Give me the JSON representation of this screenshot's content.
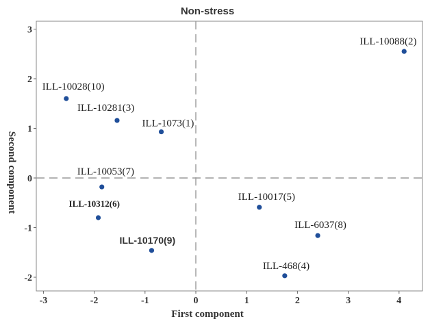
{
  "chart_data": {
    "type": "scatter",
    "title": "Non-stress",
    "xlabel": "First component",
    "ylabel": "Second component",
    "xlim": [
      -3.2,
      4.5
    ],
    "ylim": [
      -2.3,
      3.15
    ],
    "xticks": [
      -3,
      -2,
      -1,
      0,
      1,
      2,
      3,
      4
    ],
    "yticks": [
      -2,
      -1,
      0,
      1,
      2,
      3
    ],
    "reference_lines": {
      "x": 0,
      "y": 0,
      "style": "dashed"
    },
    "point_color": "#1f4e99",
    "points": [
      {
        "label": "ILL-10088(2)",
        "x": 4.1,
        "y": 2.55
      },
      {
        "label": "ILL-10028(10)",
        "x": -2.55,
        "y": 1.6
      },
      {
        "label": "ILL-10281(3)",
        "x": -1.55,
        "y": 1.16
      },
      {
        "label": "ILL-1073(1)",
        "x": -0.68,
        "y": 0.93
      },
      {
        "label": "ILL-10053(7)",
        "x": -1.85,
        "y": -0.18
      },
      {
        "label": "ILL-10312(6)",
        "x": -1.92,
        "y": -0.8
      },
      {
        "label": "ILL-10170(9)",
        "x": -0.87,
        "y": -1.46
      },
      {
        "label": "ILL-10017(5)",
        "x": 1.25,
        "y": -0.59
      },
      {
        "label": "ILL-6037(8)",
        "x": 2.4,
        "y": -1.16
      },
      {
        "label": "ILL-468(4)",
        "x": 1.75,
        "y": -1.97
      }
    ]
  }
}
